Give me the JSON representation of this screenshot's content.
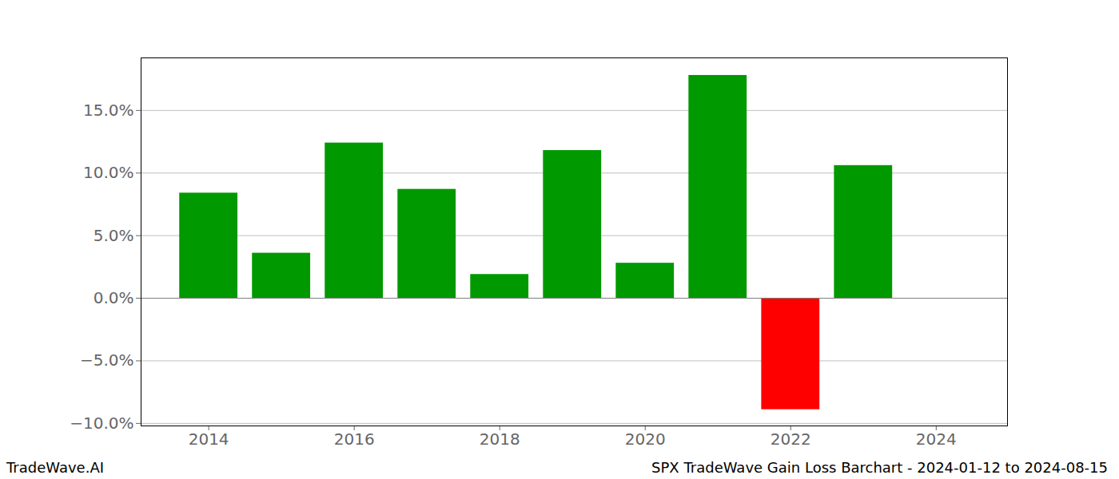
{
  "chart_data": {
    "type": "bar",
    "title": "SPX TradeWave Gain Loss Barchart - 2024-01-12 to 2024-08-15",
    "watermark": "TradeWave.AI",
    "x": [
      2014,
      2015,
      2016,
      2017,
      2018,
      2019,
      2020,
      2021,
      2022,
      2023
    ],
    "values": [
      8.4,
      3.6,
      12.4,
      8.7,
      1.9,
      11.8,
      2.8,
      17.8,
      -8.9,
      10.6
    ],
    "colors": [
      "#009900",
      "#009900",
      "#009900",
      "#009900",
      "#009900",
      "#009900",
      "#009900",
      "#009900",
      "#ff0000",
      "#009900"
    ],
    "xlim": [
      2013.07,
      2024.98
    ],
    "xticks": [
      2014,
      2016,
      2018,
      2020,
      2022,
      2024
    ],
    "ylim": [
      -10.2,
      19.2
    ],
    "yticks": [
      {
        "value": -10,
        "label": "−10.0%"
      },
      {
        "value": -5,
        "label": "−5.0%"
      },
      {
        "value": 0,
        "label": "0.0%"
      },
      {
        "value": 5,
        "label": "5.0%"
      },
      {
        "value": 10,
        "label": "10.0%"
      },
      {
        "value": 15,
        "label": "15.0%"
      }
    ],
    "grid": true
  }
}
